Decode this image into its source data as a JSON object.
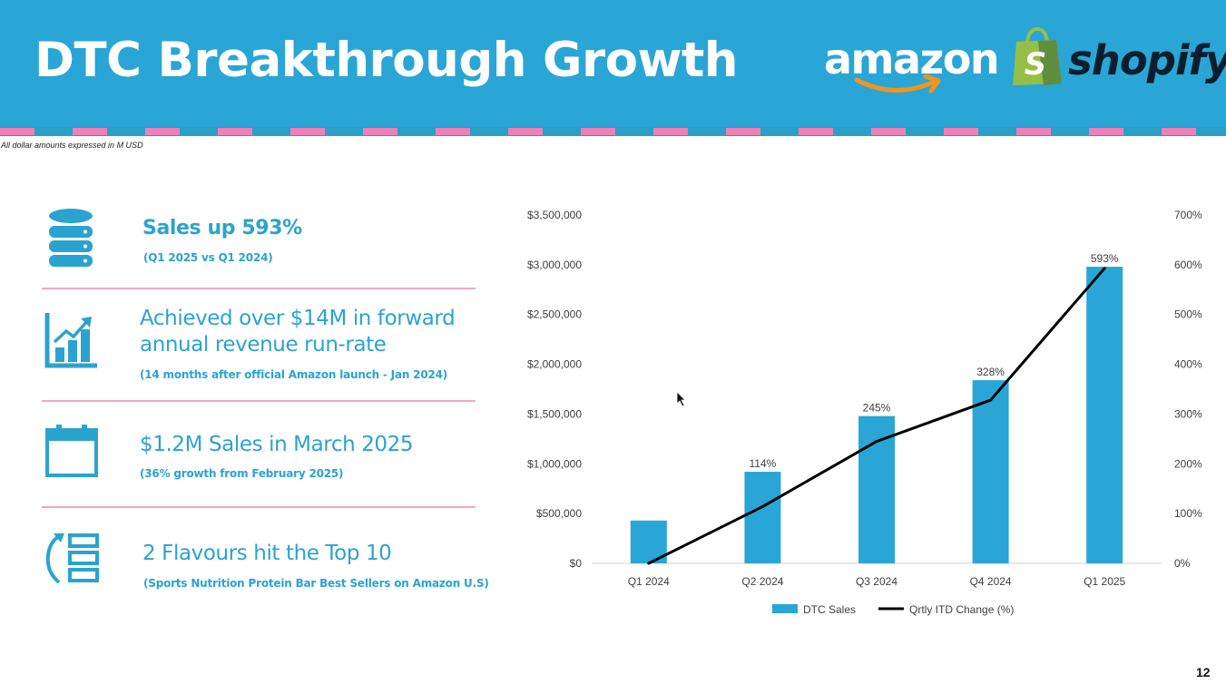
{
  "header": {
    "title": "DTC Breakthrough Growth",
    "colors": {
      "banner": "#29a6d5",
      "stripe_pink": "#ee7fb7"
    }
  },
  "logos": {
    "amazon": "amazon",
    "shopify": "shopify",
    "shopify_bag_letter": "S"
  },
  "footnote": "All dollar amounts expressed in M USD",
  "highlights": [
    {
      "icon": "database-icon",
      "heading": "Sales up 593%",
      "sub": "(Q1 2025 vs Q1 2024)"
    },
    {
      "icon": "growth-chart-icon",
      "heading_lines": [
        "Achieved over $14M in forward",
        "annual revenue run-rate"
      ],
      "sub": "(14 months after official Amazon launch - Jan 2024)"
    },
    {
      "icon": "calendar-icon",
      "heading": "$1.2M Sales in March 2025",
      "sub": "(36% growth from February 2025)"
    },
    {
      "icon": "ranking-list-icon",
      "heading": "2 Flavours hit the Top 10",
      "sub": "(Sports Nutrition Protein Bar Best Sellers on Amazon U.S)"
    }
  ],
  "page_number": "12",
  "chart_data": {
    "type": "bar",
    "categories": [
      "Q1 2024",
      "Q2 2024",
      "Q3 2024",
      "Q4 2024",
      "Q1 2025"
    ],
    "series": [
      {
        "name": "DTC Sales",
        "type": "bar",
        "axis": "left",
        "color": "#29a6d5",
        "values": [
          430000,
          920000,
          1480000,
          1840000,
          2980000
        ]
      },
      {
        "name": "Qrtly ITD Change (%)",
        "type": "line",
        "axis": "right",
        "color": "#000000",
        "values": [
          0,
          114,
          245,
          328,
          593
        ]
      }
    ],
    "data_labels": [
      "",
      "114%",
      "245%",
      "328%",
      "593%"
    ],
    "y_left": {
      "ylim": [
        0,
        3500000
      ],
      "ticks": [
        0,
        500000,
        1000000,
        1500000,
        2000000,
        2500000,
        3000000,
        3500000
      ],
      "tick_labels": [
        "$0",
        "$500,000",
        "$1,000,000",
        "$1,500,000",
        "$2,000,000",
        "$2,500,000",
        "$3,000,000",
        "$3,500,000"
      ]
    },
    "y_right": {
      "ylim": [
        0,
        700
      ],
      "ticks": [
        0,
        100,
        200,
        300,
        400,
        500,
        600,
        700
      ],
      "tick_labels": [
        "0%",
        "100%",
        "200%",
        "300%",
        "400%",
        "500%",
        "600%",
        "700%"
      ]
    },
    "grid": false,
    "legend": "bottom"
  }
}
